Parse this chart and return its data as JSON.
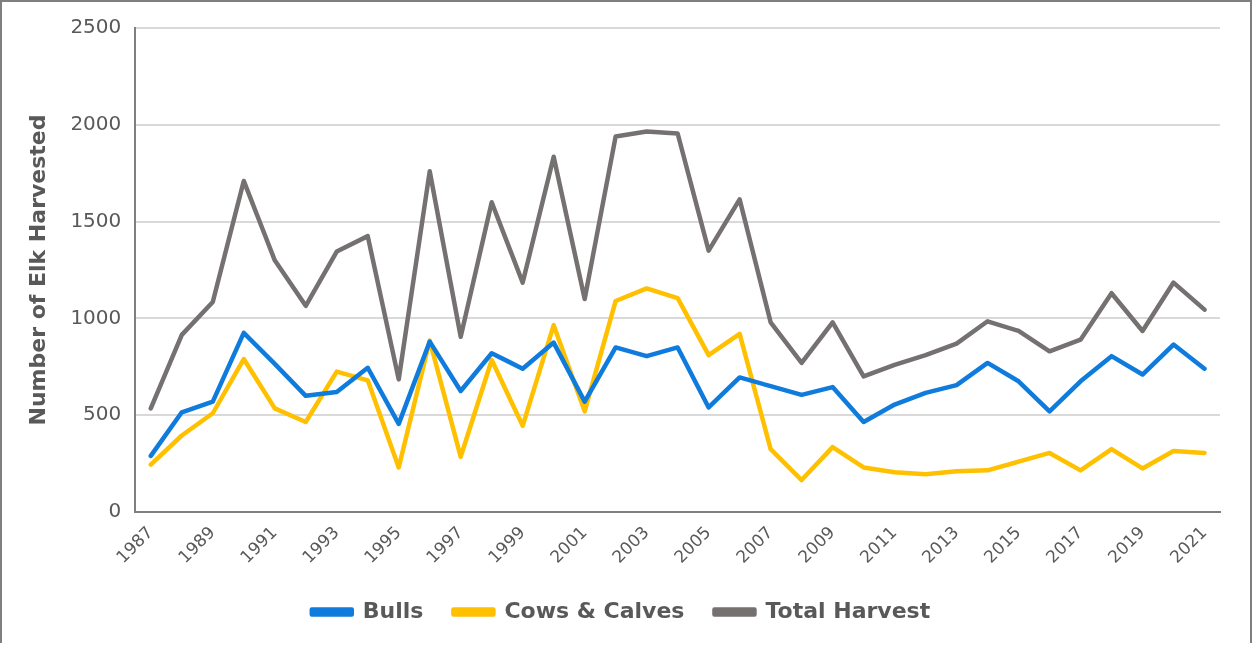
{
  "chart_data": {
    "type": "line",
    "ylabel": "Number of Elk Harvested",
    "categories": [
      "1987",
      null,
      "1989",
      null,
      "1991",
      null,
      "1993",
      null,
      "1995",
      null,
      "1997",
      null,
      "1999",
      null,
      "2001",
      null,
      "2003",
      null,
      "2005",
      null,
      "2007",
      null,
      "2009",
      null,
      "2011",
      null,
      "2013",
      null,
      "2015",
      null,
      "2017",
      null,
      "2019",
      null,
      "2021"
    ],
    "series": [
      {
        "name": "Bulls",
        "color": "#0f7bdc",
        "values": [
          290,
          515,
          570,
          925,
          765,
          600,
          620,
          745,
          455,
          880,
          625,
          820,
          740,
          875,
          570,
          850,
          805,
          850,
          540,
          695,
          650,
          605,
          645,
          465,
          555,
          615,
          655,
          770,
          675,
          520,
          675,
          805,
          710,
          865,
          740
        ]
      },
      {
        "name": "Cows & Calves",
        "color": "#ffc000",
        "values": [
          245,
          395,
          510,
          790,
          535,
          465,
          725,
          680,
          230,
          885,
          285,
          785,
          445,
          965,
          520,
          1090,
          1155,
          1105,
          810,
          920,
          325,
          165,
          335,
          230,
          205,
          195,
          210,
          215,
          260,
          305,
          215,
          325,
          225,
          315,
          305
        ]
      },
      {
        "name": "Total Harvest",
        "color": "#767171",
        "values": [
          535,
          915,
          1085,
          1710,
          1300,
          1065,
          1345,
          1425,
          685,
          1760,
          905,
          1600,
          1185,
          1835,
          1100,
          1940,
          1965,
          1955,
          1350,
          1615,
          980,
          770,
          980,
          700,
          760,
          810,
          870,
          985,
          935,
          830,
          890,
          1130,
          935,
          1185,
          1045
        ]
      }
    ],
    "ylim": [
      0,
      2500
    ],
    "yticks": [
      0,
      500,
      1000,
      1500,
      2000,
      2500
    ],
    "grid": "y",
    "legend": "bottom",
    "marker": "none",
    "line_style": "solid"
  }
}
